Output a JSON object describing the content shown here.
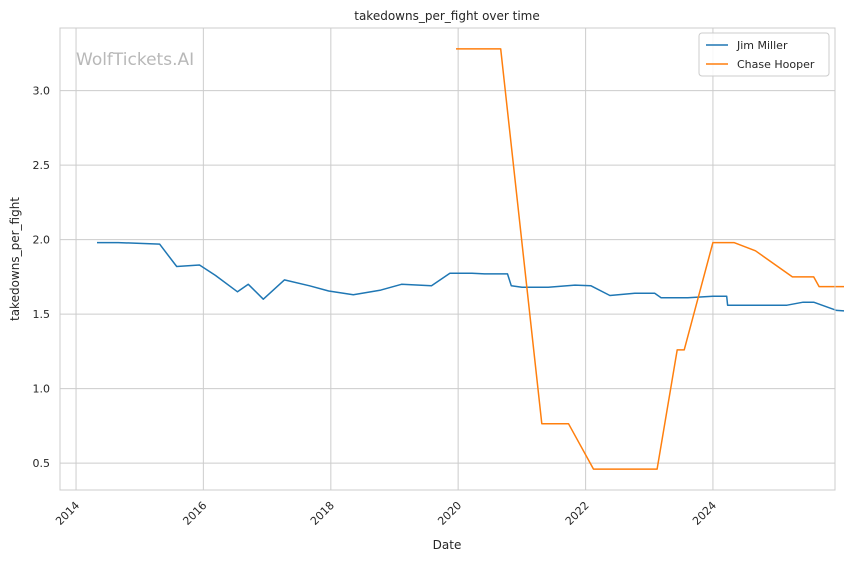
{
  "chart_data": {
    "type": "line",
    "title": "takedowns_per_fight over time",
    "xlabel": "Date",
    "ylabel": "takedowns_per_fight",
    "watermark": "WolfTickets.AI",
    "xlim": [
      "2013-10-01",
      "2025-12-01"
    ],
    "ylim": [
      0.32,
      3.42
    ],
    "x_ticks": [
      "2014",
      "2016",
      "2018",
      "2020",
      "2022",
      "2024"
    ],
    "y_ticks": [
      "0.5",
      "1.0",
      "1.5",
      "2.0",
      "2.5",
      "3.0"
    ],
    "grid": true,
    "legend_position": "top-right",
    "series": [
      {
        "name": "Jim Miller",
        "color": "#1f77b4",
        "points": [
          [
            "2014-05-01",
            1.98
          ],
          [
            "2014-09-01",
            1.98
          ],
          [
            "2015-04-25",
            1.97
          ],
          [
            "2015-08-01",
            1.82
          ],
          [
            "2015-12-10",
            1.83
          ],
          [
            "2016-03-10",
            1.76
          ],
          [
            "2016-07-15",
            1.65
          ],
          [
            "2016-09-15",
            1.7
          ],
          [
            "2016-12-10",
            1.6
          ],
          [
            "2017-04-10",
            1.73
          ],
          [
            "2017-09-01",
            1.69
          ],
          [
            "2017-12-20",
            1.655
          ],
          [
            "2018-05-10",
            1.63
          ],
          [
            "2018-10-10",
            1.66
          ],
          [
            "2019-02-10",
            1.7
          ],
          [
            "2019-08-01",
            1.69
          ],
          [
            "2019-11-15",
            1.775
          ],
          [
            "2020-03-20",
            1.775
          ],
          [
            "2020-06-01",
            1.77
          ],
          [
            "2020-10-10",
            1.77
          ],
          [
            "2020-11-01",
            1.69
          ],
          [
            "2021-01-01",
            1.68
          ],
          [
            "2021-06-01",
            1.68
          ],
          [
            "2021-11-01",
            1.695
          ],
          [
            "2022-02-01",
            1.69
          ],
          [
            "2022-05-20",
            1.625
          ],
          [
            "2022-10-10",
            1.64
          ],
          [
            "2023-02-01",
            1.64
          ],
          [
            "2023-03-10",
            1.61
          ],
          [
            "2023-08-10",
            1.61
          ],
          [
            "2024-01-01",
            1.62
          ],
          [
            "2024-03-20",
            1.62
          ],
          [
            "2024-03-25",
            1.56
          ],
          [
            "2025-03-01",
            1.56
          ],
          [
            "2025-06-01",
            1.58
          ],
          [
            "2025-08-01",
            1.58
          ],
          [
            "2025-12-10",
            1.525
          ],
          [
            "2026-05-01",
            1.515
          ]
        ]
      },
      {
        "name": "Chase Hooper",
        "color": "#ff7f0e",
        "points": [
          [
            "2019-12-20",
            3.28
          ],
          [
            "2020-09-01",
            3.28
          ],
          [
            "2021-04-25",
            0.765
          ],
          [
            "2021-09-25",
            0.765
          ],
          [
            "2022-02-15",
            0.46
          ],
          [
            "2023-02-15",
            0.46
          ],
          [
            "2023-06-10",
            1.26
          ],
          [
            "2023-07-20",
            1.26
          ],
          [
            "2024-01-01",
            1.98
          ],
          [
            "2024-05-01",
            1.98
          ],
          [
            "2024-09-01",
            1.925
          ],
          [
            "2025-04-01",
            1.75
          ],
          [
            "2025-08-01",
            1.75
          ],
          [
            "2025-09-01",
            1.685
          ],
          [
            "2026-03-01",
            1.685
          ],
          [
            "2026-05-01",
            1.91
          ]
        ]
      }
    ]
  }
}
